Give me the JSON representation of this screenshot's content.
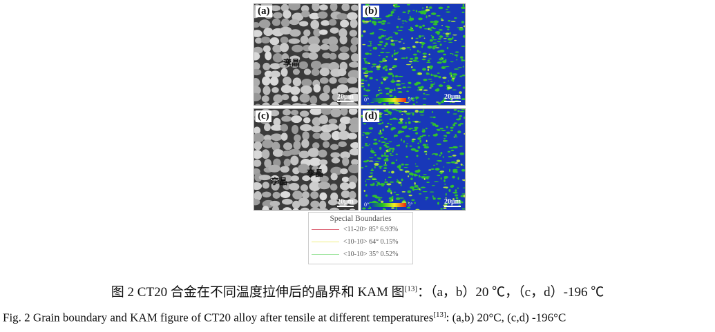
{
  "panels": [
    {
      "label": "(a)",
      "type": "grain-map",
      "scale": "20μm",
      "annotation": "孪晶"
    },
    {
      "label": "(b)",
      "type": "kam-map",
      "scale": "20μm",
      "cbar_min": "0°",
      "cbar_max": "5°"
    },
    {
      "label": "(c)",
      "type": "grain-map",
      "scale": "20μm",
      "annotations": [
        "孪晶",
        "孪晶"
      ]
    },
    {
      "label": "(d)",
      "type": "kam-map",
      "scale": "20μm",
      "cbar_min": "0°",
      "cbar_max": "5°"
    }
  ],
  "legend": {
    "title": "Special Boundaries",
    "items": [
      {
        "text": "<11-20> 85°  6.93%",
        "color": "#e07080"
      },
      {
        "text": "<10-10> 64°  0.15%",
        "color": "#f0f080"
      },
      {
        "text": "<10-10> 35°  0.52%",
        "color": "#90e090"
      }
    ]
  },
  "caption_cn": {
    "text": "图 2 CT20 合金在不同温度拉伸后的晶界和 KAM 图",
    "ref": "[13]",
    "rest": "：（a，b）20 ℃，（c，d）-196 ℃"
  },
  "caption_en": {
    "text": "Fig. 2 Grain boundary and KAM figure of CT20 alloy after tensile at different temperatures",
    "ref": "[13]",
    "rest": ": (a,b) 20°C, (c,d) -196°C"
  }
}
